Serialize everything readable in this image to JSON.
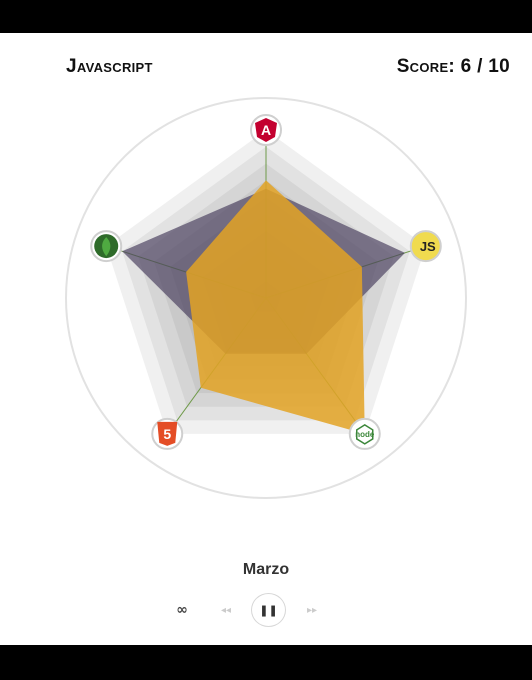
{
  "header": {
    "title": "Javascript",
    "score_label": "Score:",
    "score_value": "6 / 10"
  },
  "chart_data": {
    "type": "radar",
    "axes": [
      {
        "name": "angular-icon",
        "glyph": "A",
        "color": "#c3002f"
      },
      {
        "name": "javascript-icon",
        "glyph": "JS",
        "color": "#f0db4f"
      },
      {
        "name": "nodejs-icon",
        "glyph": "node",
        "color": "#3c873a"
      },
      {
        "name": "html5-icon",
        "glyph": "5",
        "color": "#e44d26"
      },
      {
        "name": "mongodb-icon",
        "glyph": "",
        "color": "#4faa41"
      }
    ],
    "max": 10,
    "levels": 10,
    "series": [
      {
        "values": [
          6.5,
          8.7,
          4.1,
          4.1,
          9.0
        ],
        "color": "#4a3f5e",
        "opacity": 0.68
      },
      {
        "values": [
          7.0,
          6.0,
          10.0,
          6.6,
          5.0
        ],
        "color": "#e3a324",
        "opacity": 0.85
      }
    ],
    "grid": true,
    "axis_line_color": "#6f9a49"
  },
  "player": {
    "month": "Marzo",
    "loop_symbol": "∞",
    "rewind_symbol": "◂◂",
    "pause_symbol": "❚❚",
    "forward_symbol": "▸▸"
  }
}
